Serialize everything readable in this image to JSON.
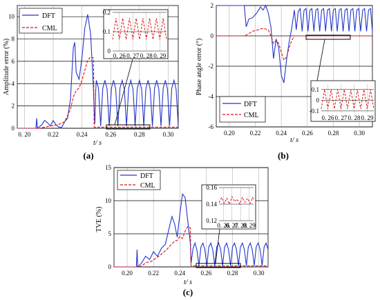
{
  "colors": {
    "dft": "#2233cc",
    "cml": "#dd1111"
  },
  "chart_data": [
    {
      "type": "line",
      "panel_label": "(a)",
      "xlabel": "t/ s",
      "ylabel": "Amplitude error (%)",
      "xlim": [
        0.195,
        0.307
      ],
      "ylim": [
        0,
        11
      ],
      "xticks": [
        "0. 20",
        "0.22",
        "0.24",
        "0.26",
        "0.28",
        "0.30"
      ],
      "xtick_values": [
        0.2,
        0.22,
        0.24,
        0.26,
        0.28,
        0.3
      ],
      "yticks": [
        "0",
        "2",
        "4",
        "6",
        "8",
        "10"
      ],
      "ytick_values": [
        0,
        2,
        4,
        6,
        8,
        10
      ],
      "legend": {
        "placement": "top-left",
        "entries": [
          "DFT",
          "CML"
        ]
      },
      "series": [
        {
          "name": "DFT",
          "color": "#2233cc",
          "style": "solid",
          "x": [
            0.195,
            0.208,
            0.2085,
            0.209,
            0.212,
            0.214,
            0.216,
            0.218,
            0.22,
            0.222,
            0.224,
            0.226,
            0.228,
            0.23,
            0.232,
            0.234,
            0.235,
            0.236,
            0.238,
            0.24,
            0.242,
            0.244,
            0.246,
            0.248,
            0.2485,
            0.249,
            0.2495,
            0.25,
            0.2515,
            0.253,
            0.2545,
            0.256,
            0.2575,
            0.259,
            0.2605,
            0.262,
            0.2635,
            0.265,
            0.2665,
            0.268,
            0.2695,
            0.271,
            0.2725,
            0.274,
            0.2755,
            0.277,
            0.2785,
            0.28,
            0.2815,
            0.283,
            0.2845,
            0.286,
            0.2875,
            0.289,
            0.2905,
            0.292,
            0.2935,
            0.295,
            0.2965,
            0.298,
            0.2995,
            0.301,
            0.3025,
            0.304,
            0.3055,
            0.307
          ],
          "y": [
            0,
            0,
            0.9,
            0,
            0.3,
            0.7,
            0.5,
            0.2,
            0.7,
            0.3,
            0.1,
            0.1,
            0.6,
            0.9,
            2.6,
            7.2,
            7.7,
            5,
            4.4,
            6.3,
            9,
            10.2,
            8.5,
            3.5,
            1.5,
            0.4,
            3.2,
            4.3,
            3.6,
            0.2,
            3.6,
            4.3,
            3.5,
            0.2,
            3.6,
            4.3,
            3.5,
            0.2,
            3.6,
            4.3,
            3.5,
            0.2,
            3.6,
            4.3,
            3.5,
            0.2,
            3.6,
            4.3,
            3.5,
            0.2,
            3.6,
            4.3,
            3.5,
            0.2,
            3.6,
            4.3,
            3.5,
            0.2,
            3.6,
            4.3,
            3.5,
            0.2,
            3.6,
            4.3,
            3.5,
            0.2
          ]
        },
        {
          "name": "CML",
          "color": "#dd1111",
          "style": "dashed",
          "x": [
            0.195,
            0.21,
            0.212,
            0.216,
            0.22,
            0.224,
            0.228,
            0.232,
            0.234,
            0.236,
            0.238,
            0.24,
            0.242,
            0.244,
            0.246,
            0.248,
            0.2485,
            0.25,
            0.307
          ],
          "y": [
            0,
            0,
            0.05,
            0.15,
            0.25,
            0.35,
            0.6,
            1.7,
            2.8,
            3.4,
            3.6,
            4.3,
            5.2,
            6.1,
            6.4,
            6.3,
            0.1,
            0.1,
            0.1
          ]
        }
      ],
      "inset": {
        "xlim": [
          0.255,
          0.295
        ],
        "ylim": [
          0,
          0.2
        ],
        "xticks": [
          "0. 26",
          "0. 27",
          "0. 28",
          "0. 29"
        ],
        "xtick_values": [
          0.26,
          0.27,
          0.28,
          0.29
        ],
        "yticks": [
          "0",
          "0.1",
          "0.2"
        ],
        "ytick_values": [
          0,
          0.1,
          0.2
        ],
        "series": [
          {
            "name": "CML",
            "color": "#dd1111",
            "style": "dashed",
            "x": [
              0.255,
              0.2575,
              0.26,
              0.2625,
              0.265,
              0.2675,
              0.27,
              0.2725,
              0.275,
              0.2775,
              0.28,
              0.2825,
              0.285,
              0.2875,
              0.29,
              0.2925,
              0.295
            ],
            "y": [
              0.06,
              0.17,
              0.06,
              0.17,
              0.06,
              0.17,
              0.06,
              0.17,
              0.06,
              0.17,
              0.06,
              0.17,
              0.06,
              0.17,
              0.06,
              0.17,
              0.06
            ]
          }
        ]
      }
    },
    {
      "type": "line",
      "panel_label": "(b)",
      "xlabel": "t/ s",
      "ylabel": "Phase angle error (°)",
      "xlim": [
        0.19,
        0.31
      ],
      "ylim": [
        -6,
        2
      ],
      "xticks": [
        "0.20",
        "0.22",
        "0.24",
        "0.26",
        "0.28",
        "0.30"
      ],
      "xtick_values": [
        0.2,
        0.22,
        0.24,
        0.26,
        0.28,
        0.3
      ],
      "yticks": [
        "2",
        "0",
        "-2",
        "-4",
        "-6"
      ],
      "ytick_values": [
        2,
        0,
        -2,
        -4,
        -6
      ],
      "legend": {
        "placement": "bottom-left",
        "entries": [
          "DFT",
          "CML"
        ]
      },
      "series": [
        {
          "name": "DFT",
          "color": "#2233cc",
          "style": "solid",
          "x": [
            0.19,
            0.211,
            0.2115,
            0.213,
            0.215,
            0.218,
            0.221,
            0.224,
            0.226,
            0.228,
            0.23,
            0.232,
            0.234,
            0.236,
            0.238,
            0.24,
            0.242,
            0.244,
            0.246,
            0.248,
            0.25,
            0.2515,
            0.253,
            0.2545,
            0.256,
            0.2575,
            0.259,
            0.2605,
            0.262,
            0.2635,
            0.265,
            0.2665,
            0.268,
            0.2695,
            0.271,
            0.2725,
            0.274,
            0.2755,
            0.277,
            0.2785,
            0.28,
            0.2815,
            0.283,
            0.2845,
            0.286,
            0.2875,
            0.289,
            0.2905,
            0.292,
            0.2935,
            0.295,
            0.2965,
            0.298,
            0.2995,
            0.301,
            0.3025,
            0.304,
            0.3055,
            0.307,
            0.3085,
            0.31
          ],
          "y": [
            2,
            2,
            2,
            0.6,
            1.1,
            1.2,
            1.5,
            1.9,
            1.7,
            2,
            1.5,
            0.6,
            -1.5,
            -0.2,
            -0.8,
            -2.6,
            -3.1,
            -1.6,
            -0.4,
            0.5,
            1.7,
            0.4,
            1.6,
            1.8,
            0.3,
            1.7,
            1.8,
            0.3,
            1.7,
            1.8,
            0.3,
            1.7,
            1.8,
            0.3,
            1.7,
            1.8,
            0.3,
            1.7,
            1.8,
            0.3,
            1.7,
            1.8,
            0.3,
            1.7,
            1.8,
            0.3,
            1.7,
            1.8,
            0.3,
            1.7,
            1.8,
            0.3,
            1.7,
            1.8,
            0.3,
            1.7,
            1.8,
            0.3,
            1.7,
            1.8,
            0.3
          ]
        },
        {
          "name": "CML",
          "color": "#dd1111",
          "style": "dashed",
          "x": [
            0.19,
            0.212,
            0.214,
            0.218,
            0.222,
            0.226,
            0.23,
            0.232,
            0.234,
            0.236,
            0.238,
            0.24,
            0.242,
            0.244,
            0.246,
            0.248,
            0.25,
            0.252,
            0.31
          ],
          "y": [
            0,
            0,
            0.1,
            0.3,
            0.4,
            0.5,
            0.4,
            0,
            -0.5,
            -0.3,
            -0.5,
            -1.1,
            -1.6,
            -1.4,
            -0.8,
            -0.3,
            0,
            0,
            0
          ]
        }
      ],
      "inset": {
        "xlim": [
          0.255,
          0.295
        ],
        "ylim": [
          -0.12,
          0.15
        ],
        "xticks": [
          "0. 26",
          "0. 27",
          "0. 28",
          "0. 29"
        ],
        "xtick_values": [
          0.26,
          0.27,
          0.28,
          0.29
        ],
        "yticks": [
          "0.1",
          "0",
          "-0.1"
        ],
        "ytick_values": [
          0.1,
          0,
          -0.1
        ],
        "series": [
          {
            "name": "CML",
            "color": "#dd1111",
            "style": "dashed",
            "x": [
              0.255,
              0.2575,
              0.26,
              0.2625,
              0.265,
              0.2675,
              0.27,
              0.2725,
              0.275,
              0.2775,
              0.28,
              0.2825,
              0.285,
              0.2875,
              0.29,
              0.2925,
              0.295
            ],
            "y": [
              -0.08,
              0.1,
              -0.08,
              0.1,
              -0.08,
              0.1,
              -0.08,
              0.1,
              -0.08,
              0.1,
              -0.08,
              0.1,
              -0.08,
              0.1,
              -0.08,
              0.1,
              -0.08
            ]
          }
        ]
      }
    },
    {
      "type": "line",
      "panel_label": "(c)",
      "xlabel": "t/ s",
      "ylabel": "TVE (%)",
      "xlim": [
        0.19,
        0.307
      ],
      "ylim": [
        0,
        15
      ],
      "xticks": [
        "0.20",
        "0.22",
        "0.24",
        "0.26",
        "0.28",
        "0.30"
      ],
      "xtick_values": [
        0.2,
        0.22,
        0.24,
        0.26,
        0.28,
        0.3
      ],
      "yticks": [
        "0",
        "5",
        "10",
        "15"
      ],
      "ytick_values": [
        0,
        5,
        10,
        15
      ],
      "legend": {
        "placement": "top-left",
        "entries": [
          "DFT",
          "CML"
        ]
      },
      "series": [
        {
          "name": "DFT",
          "color": "#2233cc",
          "style": "solid",
          "x": [
            0.19,
            0.207,
            0.2075,
            0.208,
            0.211,
            0.214,
            0.217,
            0.22,
            0.223,
            0.226,
            0.229,
            0.232,
            0.234,
            0.236,
            0.238,
            0.24,
            0.242,
            0.244,
            0.246,
            0.248,
            0.2485,
            0.25,
            0.2515,
            0.253,
            0.2545,
            0.256,
            0.2575,
            0.259,
            0.2605,
            0.262,
            0.2635,
            0.265,
            0.2665,
            0.268,
            0.2695,
            0.271,
            0.2725,
            0.274,
            0.2755,
            0.277,
            0.2785,
            0.28,
            0.2815,
            0.283,
            0.2845,
            0.286,
            0.2875,
            0.289,
            0.2905,
            0.292,
            0.2935,
            0.295,
            0.2965,
            0.298,
            0.2995,
            0.301,
            0.3025,
            0.304,
            0.3055,
            0.307
          ],
          "y": [
            0,
            0,
            2.6,
            0,
            0.6,
            1.6,
            1.1,
            2.3,
            1.6,
            2.8,
            3.4,
            6,
            7.6,
            6.5,
            4.5,
            8,
            11,
            10.5,
            7,
            3.5,
            0.5,
            2.8,
            3.6,
            2.5,
            0.2,
            3,
            3.6,
            2.6,
            0.2,
            3,
            3.6,
            2.6,
            0.2,
            3,
            3.6,
            2.6,
            0.2,
            3,
            3.6,
            2.6,
            0.2,
            3,
            3.6,
            2.6,
            0.2,
            3,
            3.6,
            2.6,
            0.2,
            3,
            3.6,
            2.6,
            0.2,
            3,
            3.6,
            2.6,
            0.2,
            3,
            3.6,
            2.6
          ]
        },
        {
          "name": "CML",
          "color": "#dd1111",
          "style": "dashed",
          "x": [
            0.19,
            0.209,
            0.212,
            0.215,
            0.218,
            0.221,
            0.224,
            0.227,
            0.23,
            0.233,
            0.236,
            0.238,
            0.24,
            0.242,
            0.244,
            0.246,
            0.248,
            0.2485,
            0.25,
            0.307
          ],
          "y": [
            0,
            0,
            0.3,
            0.7,
            0.8,
            1.2,
            1.6,
            2.1,
            2.6,
            3.3,
            3.9,
            4,
            4.6,
            4.3,
            5.4,
            6.1,
            5.9,
            0.15,
            0.15,
            0.15
          ]
        }
      ],
      "inset": {
        "xlim": [
          0.255,
          0.295
        ],
        "ylim": [
          0.12,
          0.16
        ],
        "xticks": [
          "0. 26",
          "0. 27",
          "0. 28",
          "0. 29"
        ],
        "xtick_values": [
          0.26,
          0.27,
          0.28,
          0.29
        ],
        "yticks": [
          "0.16",
          "0.14",
          "0.12"
        ],
        "ytick_values": [
          0.16,
          0.14,
          0.12
        ],
        "series": [
          {
            "name": "CML",
            "color": "#dd1111",
            "style": "dashed",
            "x": [
              0.255,
              0.258,
              0.261,
              0.264,
              0.267,
              0.27,
              0.273,
              0.276,
              0.279,
              0.282,
              0.285,
              0.288,
              0.291,
              0.294,
              0.295
            ],
            "y": [
              0.142,
              0.148,
              0.141,
              0.147,
              0.14,
              0.149,
              0.143,
              0.146,
              0.14,
              0.148,
              0.142,
              0.147,
              0.141,
              0.148,
              0.145
            ]
          }
        ]
      }
    }
  ]
}
